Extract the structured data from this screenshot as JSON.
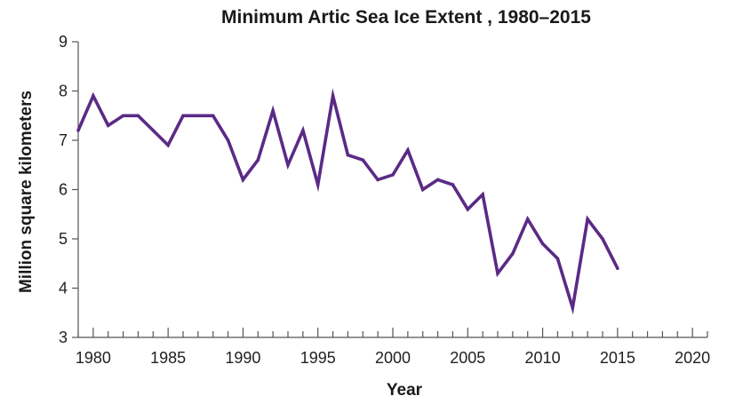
{
  "chart_data": {
    "type": "line",
    "title": "Minimum Artic Sea Ice Extent , 1980–2015",
    "xlabel": "Year",
    "ylabel": "Million square kilometers",
    "xlim": [
      1979,
      2021
    ],
    "ylim": [
      3,
      9
    ],
    "x_ticks": [
      1980,
      1985,
      1990,
      1995,
      2000,
      2005,
      2010,
      2015,
      2020
    ],
    "y_ticks": [
      3,
      4,
      5,
      6,
      7,
      8,
      9
    ],
    "grid": false,
    "series": [
      {
        "color": "#5b2a86",
        "x": [
          1979,
          1980,
          1981,
          1982,
          1983,
          1984,
          1985,
          1986,
          1987,
          1988,
          1989,
          1990,
          1991,
          1992,
          1993,
          1994,
          1995,
          1996,
          1997,
          1998,
          1999,
          2000,
          2001,
          2002,
          2003,
          2004,
          2005,
          2006,
          2007,
          2008,
          2009,
          2010,
          2011,
          2012,
          2013,
          2014,
          2015
        ],
        "y": [
          7.2,
          7.9,
          7.3,
          7.5,
          7.5,
          7.2,
          6.9,
          7.5,
          7.5,
          7.5,
          7.0,
          6.2,
          6.6,
          7.6,
          6.5,
          7.2,
          6.1,
          7.9,
          6.7,
          6.6,
          6.2,
          6.3,
          6.8,
          6.0,
          6.2,
          6.1,
          5.6,
          5.9,
          4.3,
          4.7,
          5.4,
          4.9,
          4.6,
          3.6,
          5.4,
          5.0,
          4.4
        ]
      }
    ]
  }
}
